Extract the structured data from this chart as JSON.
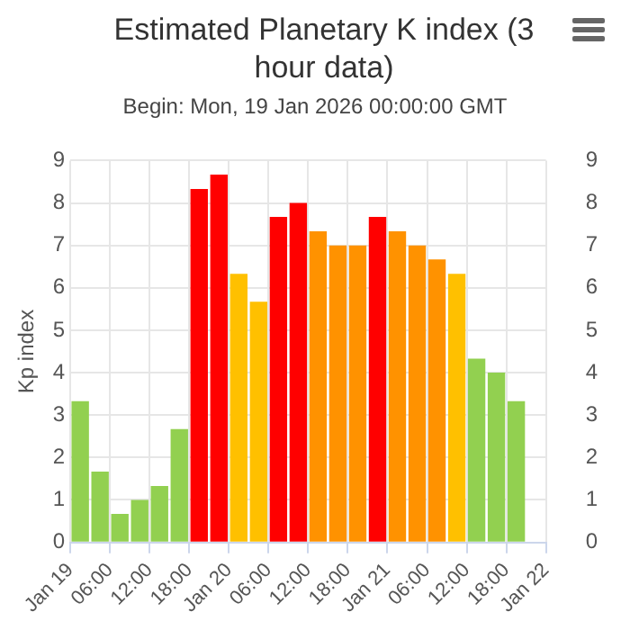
{
  "chart_data": {
    "type": "bar",
    "title": "Estimated Planetary K index (3 hour data)",
    "subtitle": "Begin: Mon, 19 Jan 2026 00:00:00 GMT",
    "ylabel": "Kp index",
    "x": [
      "2026-01-19T01:30",
      "2026-01-19T04:30",
      "2026-01-19T07:30",
      "2026-01-19T10:30",
      "2026-01-19T13:30",
      "2026-01-19T16:30",
      "2026-01-19T19:30",
      "2026-01-19T22:30",
      "2026-01-20T01:30",
      "2026-01-20T04:30",
      "2026-01-20T07:30",
      "2026-01-20T10:30",
      "2026-01-20T13:30",
      "2026-01-20T16:30",
      "2026-01-20T19:30",
      "2026-01-20T22:30",
      "2026-01-21T01:30",
      "2026-01-21T04:30",
      "2026-01-21T07:30",
      "2026-01-21T10:30",
      "2026-01-21T13:30",
      "2026-01-21T16:30",
      "2026-01-21T19:30"
    ],
    "values": [
      3.33,
      1.67,
      0.67,
      1,
      1.33,
      2.67,
      8.33,
      8.67,
      6.33,
      5.67,
      7.67,
      8,
      7.33,
      7,
      7,
      7.67,
      7.33,
      7,
      6.67,
      6.33,
      4.33,
      4,
      3.33
    ],
    "colors": [
      "#92d050",
      "#92d050",
      "#92d050",
      "#92d050",
      "#92d050",
      "#92d050",
      "#ff0000",
      "#ff0000",
      "#ffc000",
      "#ffc000",
      "#ff0000",
      "#ff0000",
      "#ff9200",
      "#ff9200",
      "#ff9200",
      "#ff0000",
      "#ff9200",
      "#ff9200",
      "#ff9200",
      "#ffc000",
      "#92d050",
      "#92d050",
      "#92d050"
    ],
    "xlim": [
      "2026-01-19T00:00",
      "2026-01-22T00:00"
    ],
    "xticks": [
      {
        "value": "2026-01-19T00:00",
        "label": "Jan 19"
      },
      {
        "value": "2026-01-19T06:00",
        "label": "06:00"
      },
      {
        "value": "2026-01-19T12:00",
        "label": "12:00"
      },
      {
        "value": "2026-01-19T18:00",
        "label": "18:00"
      },
      {
        "value": "2026-01-20T00:00",
        "label": "Jan 20"
      },
      {
        "value": "2026-01-20T06:00",
        "label": "06:00"
      },
      {
        "value": "2026-01-20T12:00",
        "label": "12:00"
      },
      {
        "value": "2026-01-20T18:00",
        "label": "18:00"
      },
      {
        "value": "2026-01-21T00:00",
        "label": "Jan 21"
      },
      {
        "value": "2026-01-21T06:00",
        "label": "06:00"
      },
      {
        "value": "2026-01-21T12:00",
        "label": "12:00"
      },
      {
        "value": "2026-01-21T18:00",
        "label": "18:00"
      },
      {
        "value": "2026-01-22T00:00",
        "label": "Jan 22"
      }
    ],
    "ylim": [
      0,
      9
    ],
    "yticks": [
      0,
      1,
      2,
      3,
      4,
      5,
      6,
      7,
      8,
      9
    ],
    "y2lim": [
      0,
      9
    ],
    "y2ticks": [
      0,
      1,
      2,
      3,
      4,
      5,
      6,
      7,
      8,
      9
    ],
    "grid": true,
    "legend": false
  }
}
